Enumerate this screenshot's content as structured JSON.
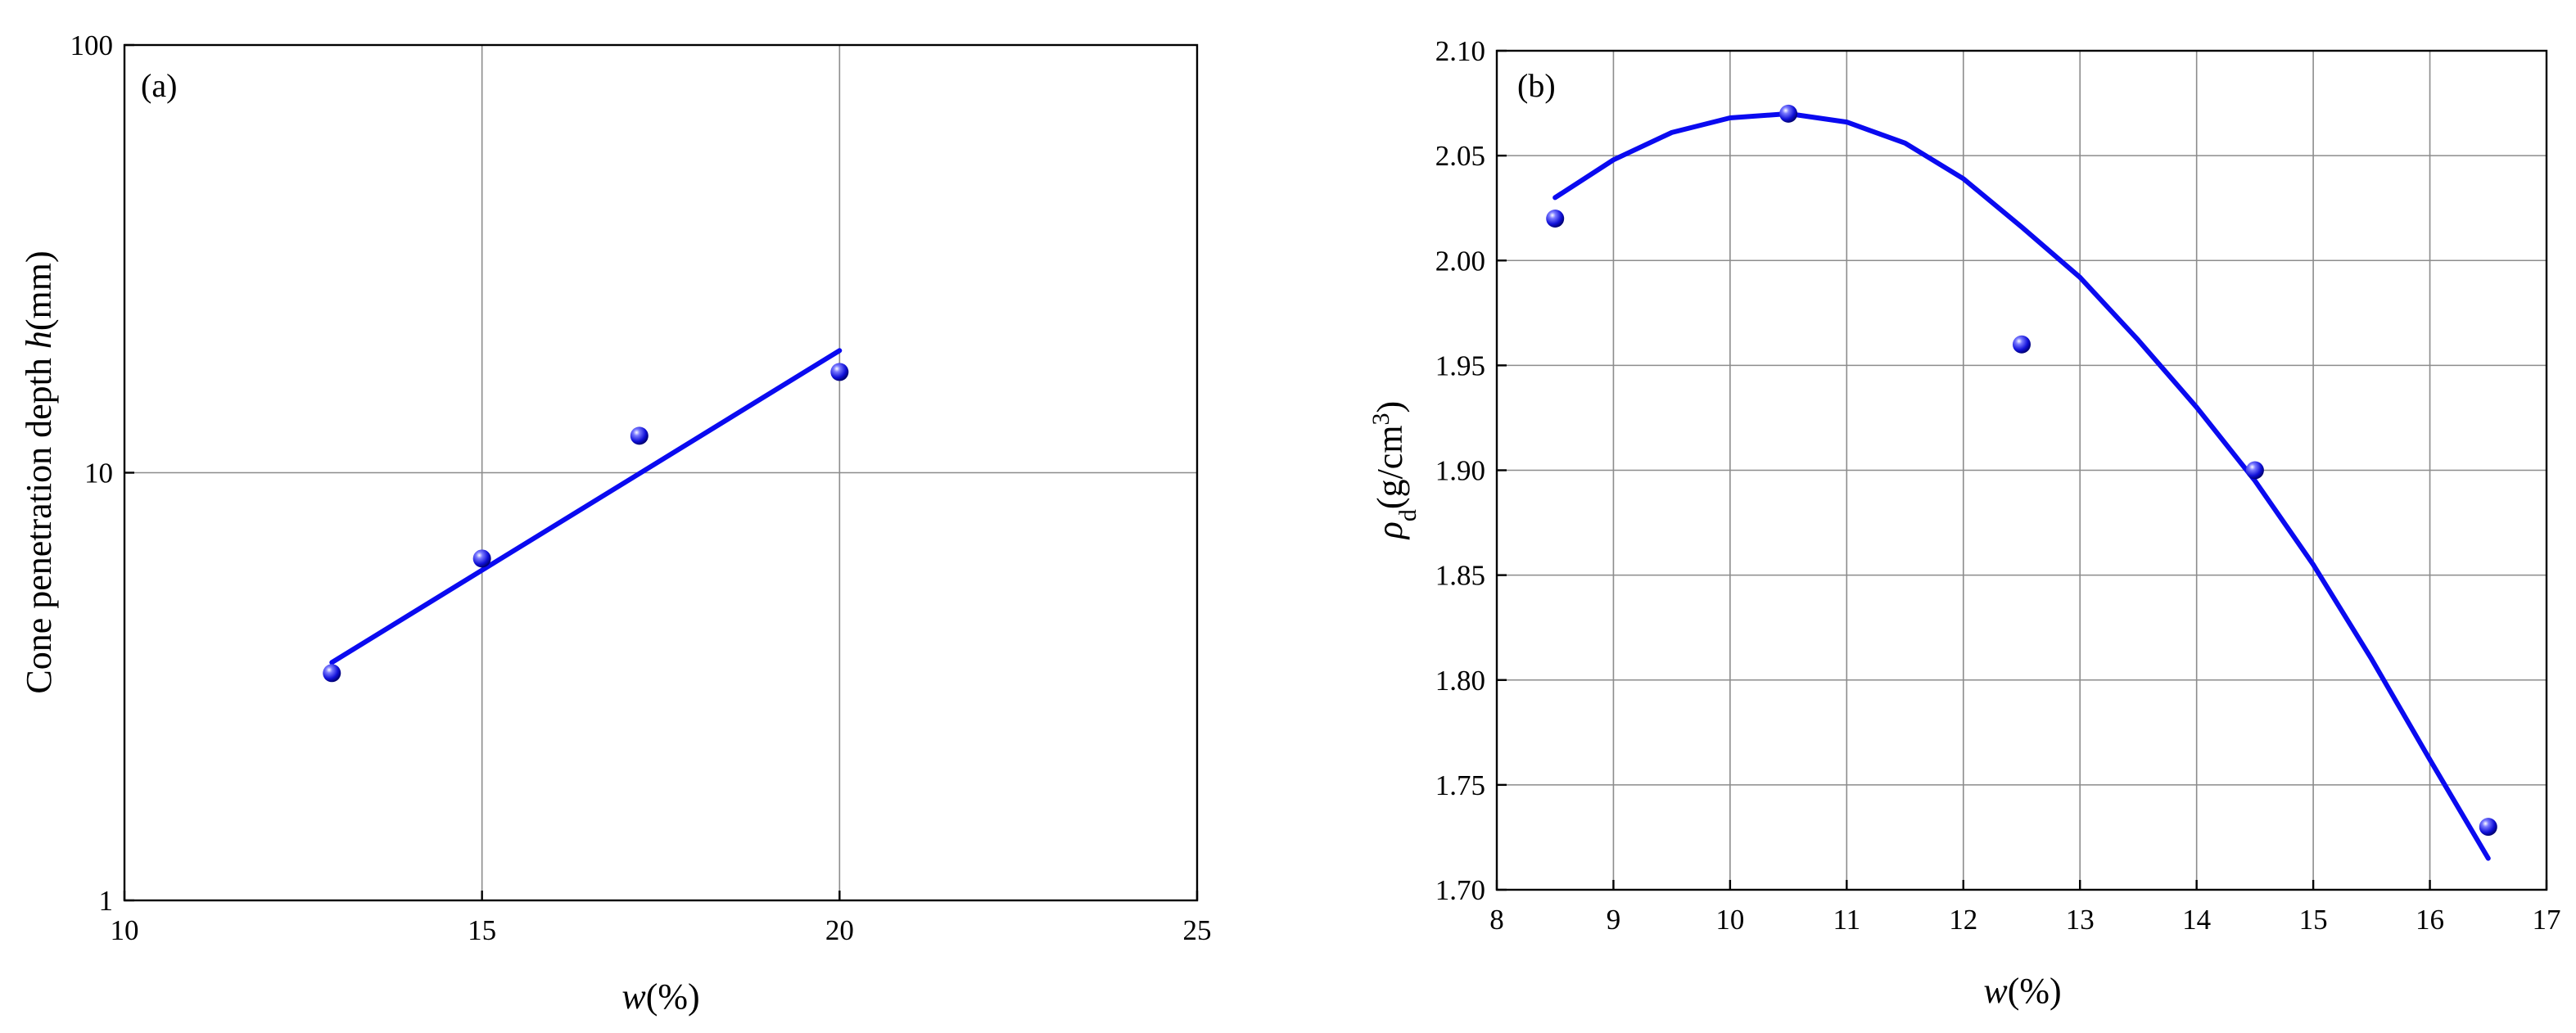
{
  "chart_data": [
    {
      "type": "scatter",
      "panel_label": "(a)",
      "xlabel_var": "w",
      "xlabel_rest": "(%)",
      "ylabel_main": "Cone penetration depth ",
      "ylabel_var": "h",
      "ylabel_rest": "(mm)",
      "xlim": [
        10,
        25
      ],
      "ylim": [
        1,
        100
      ],
      "y_scale": "log",
      "x_ticks": [
        10,
        15,
        20,
        25
      ],
      "x_tick_labels": [
        "10",
        "15",
        "20",
        "25"
      ],
      "y_ticks": [
        1,
        10,
        100
      ],
      "y_tick_labels": [
        "1",
        "10",
        "100"
      ],
      "x_grid_lines": [
        15,
        20
      ],
      "y_grid_lines": [
        10
      ],
      "points": [
        {
          "x": 12.9,
          "y": 3.4
        },
        {
          "x": 15.0,
          "y": 6.3
        },
        {
          "x": 17.2,
          "y": 12.2
        },
        {
          "x": 20.0,
          "y": 17.2
        }
      ],
      "fit_line": {
        "x": [
          12.9,
          20.0
        ],
        "y": [
          3.6,
          19.3
        ]
      },
      "colors": {
        "series": "#0a0af0"
      }
    },
    {
      "type": "scatter",
      "panel_label": "(b)",
      "xlabel_var": "w",
      "xlabel_rest": "(%)",
      "ylabel_var": "ρ",
      "ylabel_sub": "d",
      "ylabel_rest": "(g/cm",
      "ylabel_sup": "3",
      "ylabel_close": ")",
      "xlim": [
        8,
        17
      ],
      "ylim": [
        1.7,
        2.1
      ],
      "x_ticks": [
        8,
        9,
        10,
        11,
        12,
        13,
        14,
        15,
        16,
        17
      ],
      "x_tick_labels": [
        "8",
        "9",
        "10",
        "11",
        "12",
        "13",
        "14",
        "15",
        "16",
        "17"
      ],
      "y_ticks": [
        1.7,
        1.75,
        1.8,
        1.85,
        1.9,
        1.95,
        2.0,
        2.05,
        2.1
      ],
      "y_tick_labels": [
        "1.70",
        "1.75",
        "1.80",
        "1.85",
        "1.90",
        "1.95",
        "2.00",
        "2.05",
        "2.10"
      ],
      "points": [
        {
          "x": 8.5,
          "y": 2.02
        },
        {
          "x": 10.5,
          "y": 2.07
        },
        {
          "x": 12.5,
          "y": 1.96
        },
        {
          "x": 14.5,
          "y": 1.9
        },
        {
          "x": 16.5,
          "y": 1.73
        }
      ],
      "fit_curve": {
        "x": [
          8.5,
          9.0,
          9.5,
          10.0,
          10.5,
          11.0,
          11.5,
          12.0,
          12.5,
          13.0,
          13.5,
          14.0,
          14.5,
          15.0,
          15.5,
          16.0,
          16.5
        ],
        "y": [
          2.03,
          2.048,
          2.061,
          2.068,
          2.07,
          2.066,
          2.056,
          2.039,
          2.016,
          1.992,
          1.962,
          1.93,
          1.895,
          1.855,
          1.81,
          1.762,
          1.715
        ]
      },
      "colors": {
        "series": "#0a0af0"
      }
    }
  ]
}
